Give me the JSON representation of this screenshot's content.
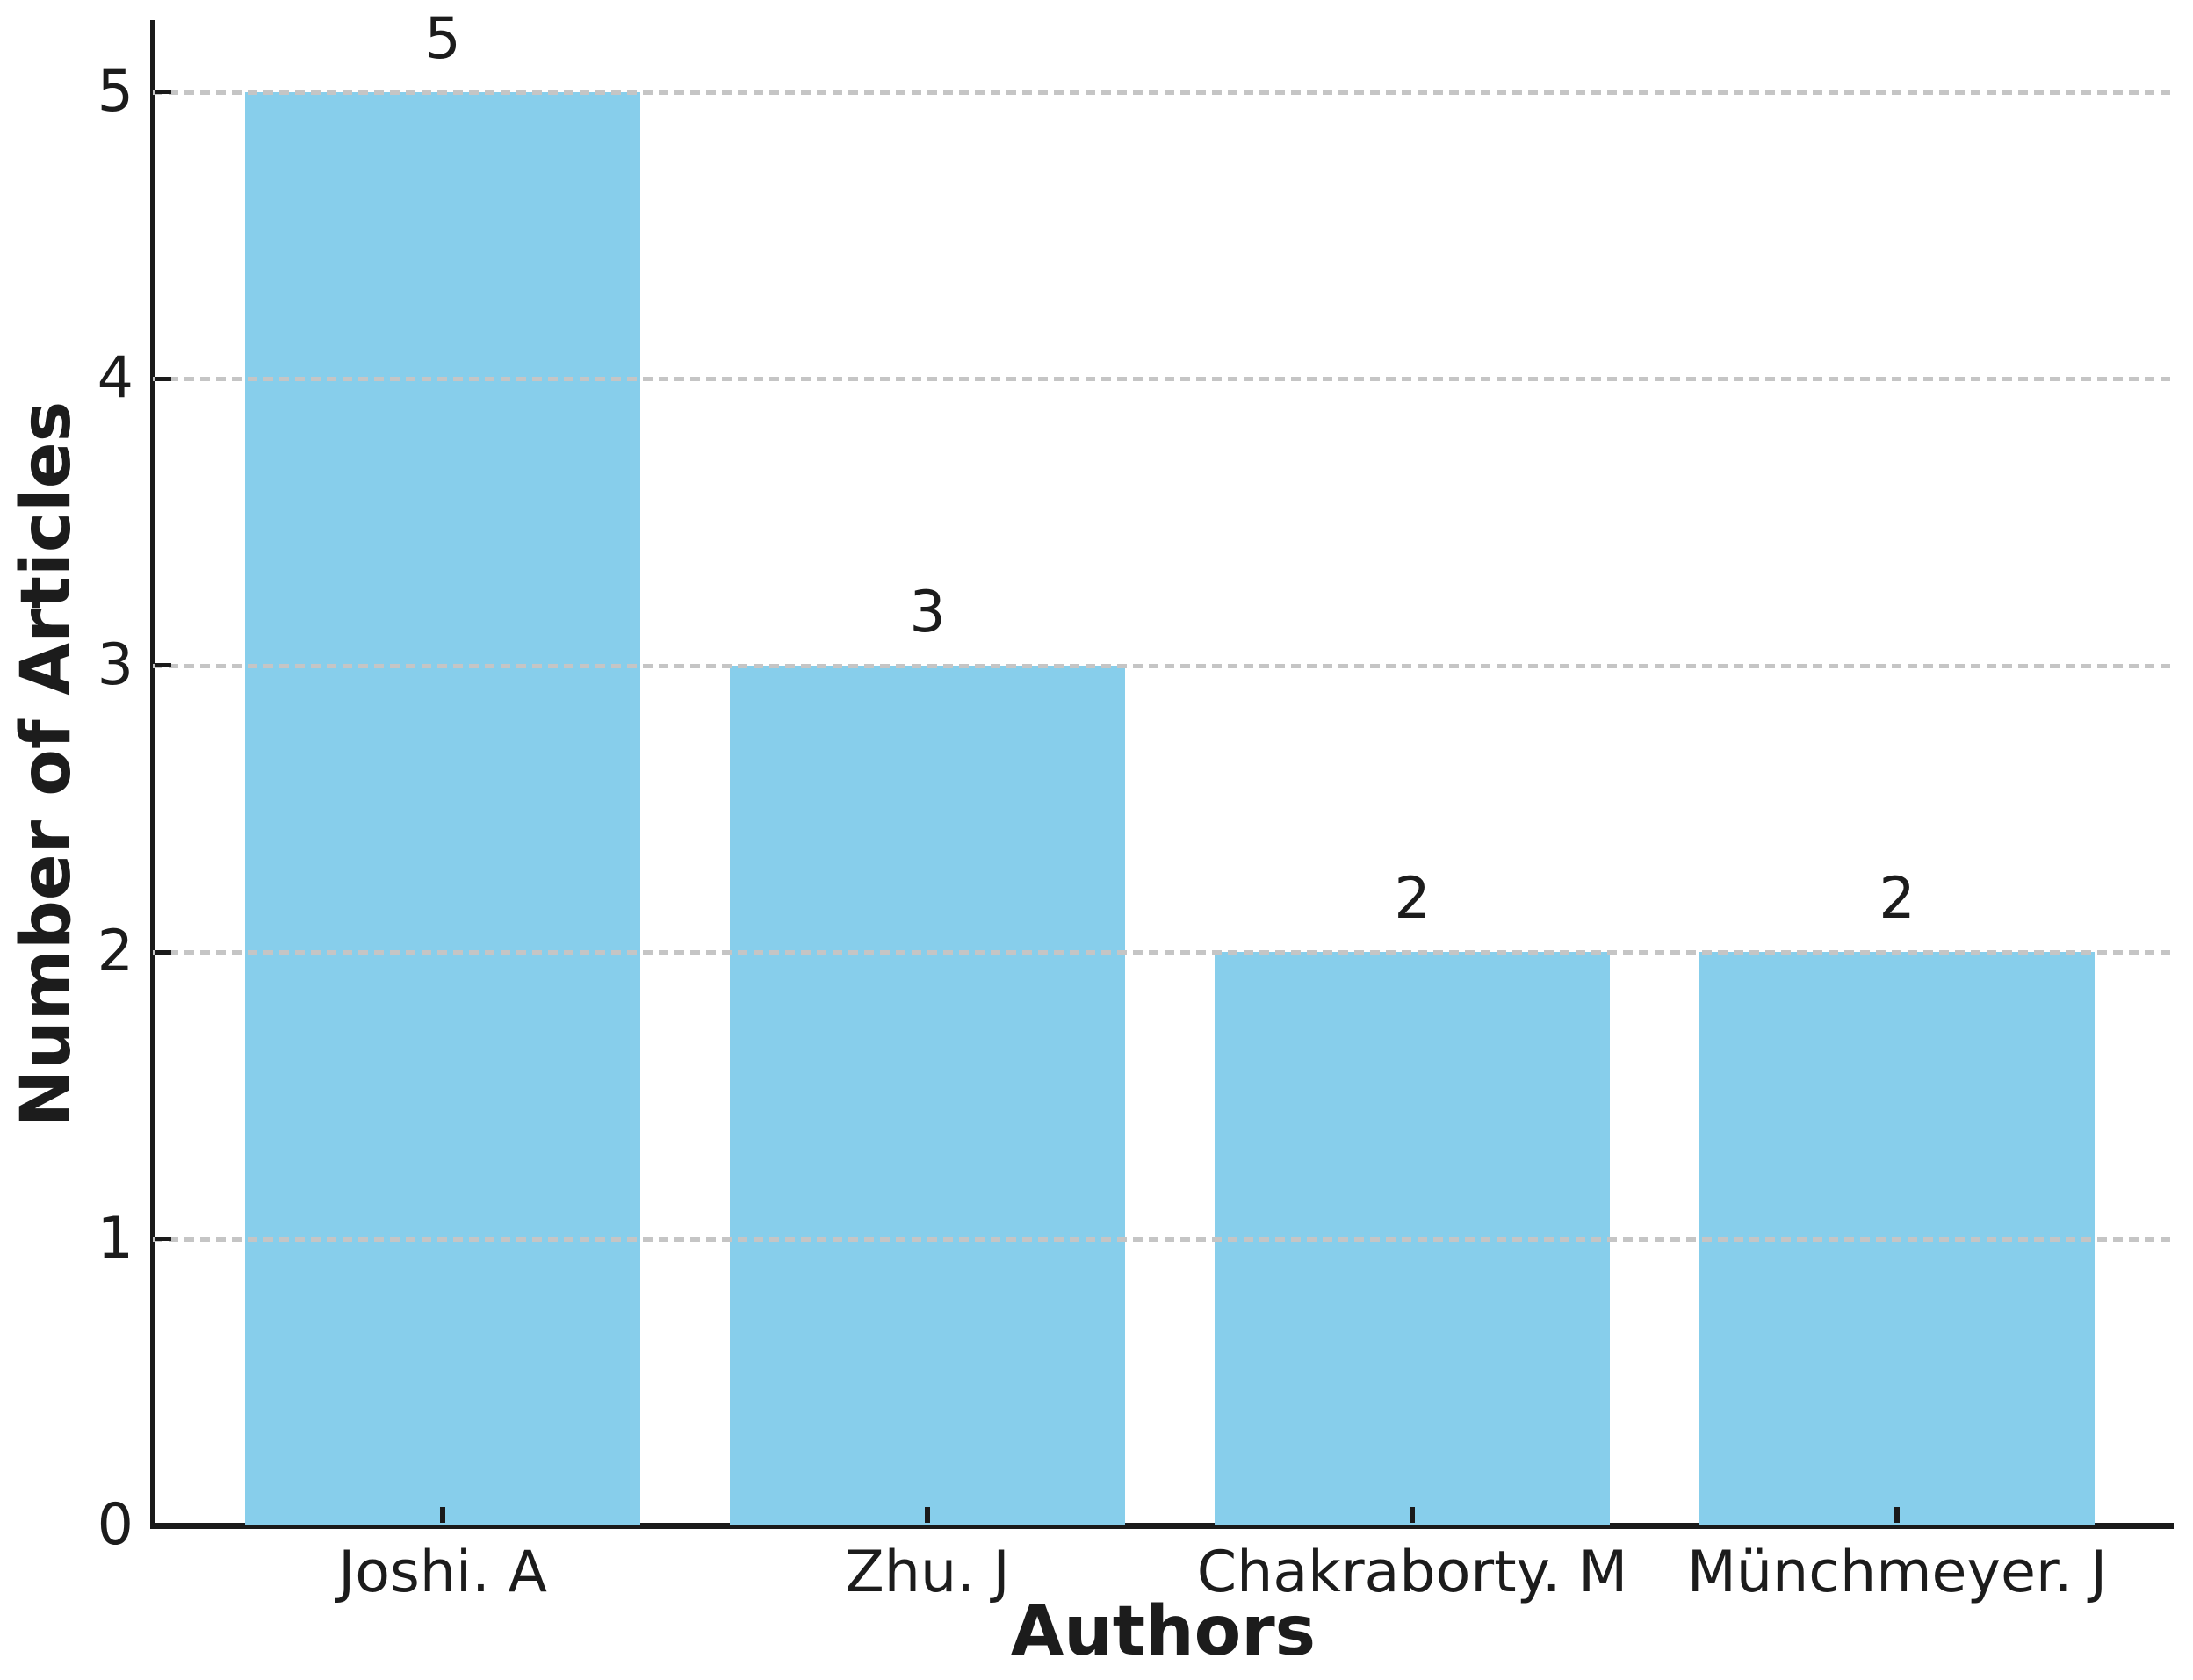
{
  "chart_data": {
    "type": "bar",
    "xlabel": "Authors",
    "ylabel": "Number of Articles",
    "categories": [
      "Joshi. A",
      "Zhu. J",
      "Chakraborty. M",
      "Münchmeyer. J"
    ],
    "values": [
      5,
      3,
      2,
      2
    ],
    "bar_value_labels": [
      "5",
      "3",
      "2",
      "2"
    ],
    "yticks": [
      0,
      1,
      2,
      3,
      4,
      5
    ],
    "ylim": [
      0,
      5.25
    ],
    "grid": "horizontal-dashed",
    "grid_above_bars": true,
    "legend": "none",
    "colors": {
      "bar": "#87CEEB",
      "grid": "#c5c5c5",
      "axis": "#1a1a1a",
      "text": "#1c1c1c",
      "background": "#ffffff"
    }
  }
}
